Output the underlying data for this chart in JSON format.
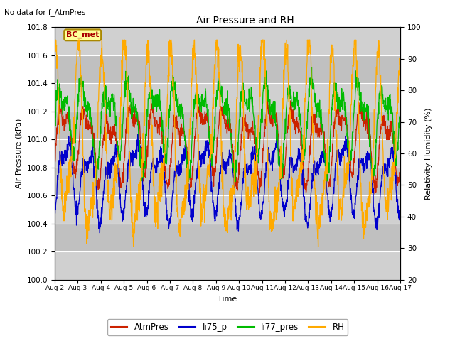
{
  "title": "Air Pressure and RH",
  "subtitle": "No data for f_AtmPres",
  "xlabel": "Time",
  "ylabel_left": "Air Pressure (kPa)",
  "ylabel_right": "Relativity Humidity (%)",
  "xlim": [
    0,
    15
  ],
  "ylim_left": [
    100.0,
    101.8
  ],
  "ylim_right": [
    20,
    100
  ],
  "xtick_labels": [
    "Aug 2",
    "Aug 3",
    "Aug 4",
    "Aug 5",
    "Aug 6",
    "Aug 7",
    "Aug 8",
    "Aug 9",
    "Aug 10",
    "Aug 11",
    "Aug 12",
    "Aug 13",
    "Aug 14",
    "Aug 15",
    "Aug 16",
    "Aug 17"
  ],
  "yticks_left": [
    100.0,
    100.2,
    100.4,
    100.6,
    100.8,
    101.0,
    101.2,
    101.4,
    101.6,
    101.8
  ],
  "yticks_right": [
    20,
    30,
    40,
    50,
    60,
    70,
    80,
    90,
    100
  ],
  "legend_labels": [
    "AtmPres",
    "li75_p",
    "li77_pres",
    "RH"
  ],
  "line_colors": [
    "#cc2200",
    "#0000cc",
    "#00bb00",
    "#ffaa00"
  ],
  "annotation_text": "BC_met",
  "annotation_color": "#aa0000",
  "annotation_bg": "#ffff99",
  "annotation_border": "#aa8800",
  "band_colors": [
    "#d8d8d8",
    "#c8c8c8"
  ]
}
